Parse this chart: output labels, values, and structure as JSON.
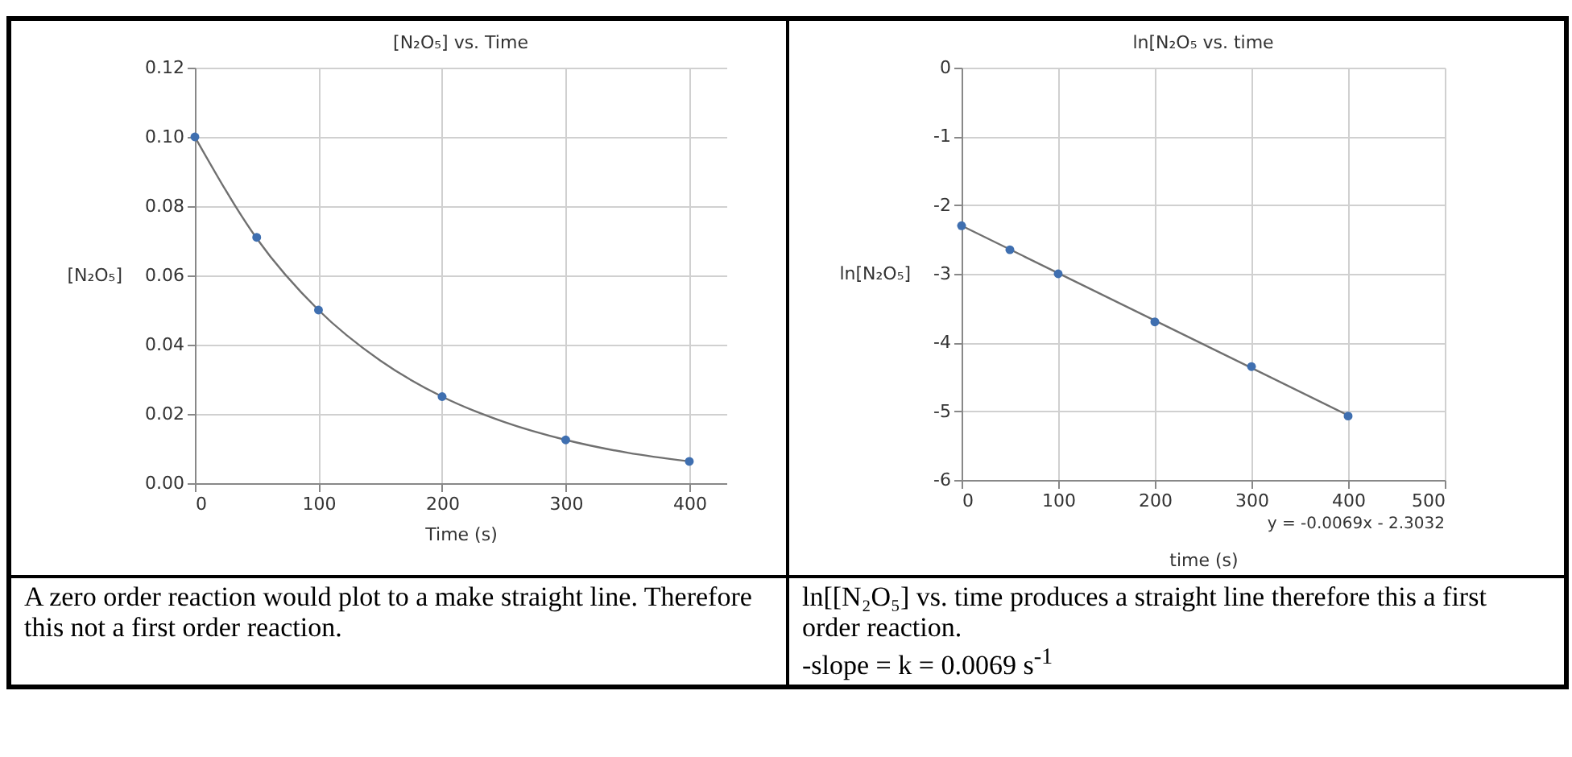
{
  "chart_data": [
    {
      "type": "scatter",
      "title": "[N₂O₅] vs. Time",
      "xlabel": "Time  (s)",
      "ylabel": "[N₂O₅]",
      "xlim": [
        0,
        430
      ],
      "xticks": [
        0,
        100,
        200,
        300,
        400
      ],
      "ylim": [
        0,
        0.12
      ],
      "yticks": [
        {
          "value": 0,
          "label": "0.00"
        },
        {
          "value": 0.02,
          "label": "0.02"
        },
        {
          "value": 0.04,
          "label": "0.04"
        },
        {
          "value": 0.06,
          "label": "0.06"
        },
        {
          "value": 0.08,
          "label": "0.08"
        },
        {
          "value": 0.1,
          "label": "0.10"
        },
        {
          "value": 0.12,
          "label": "0.12"
        }
      ],
      "grid": true,
      "series": [
        {
          "type": "line",
          "marker": "none",
          "color": "#707070",
          "x": [
            0,
            50,
            100,
            150,
            200,
            250,
            300,
            350,
            400
          ],
          "values": [
            0.1,
            0.0707,
            0.05,
            0.0354,
            0.025,
            0.0177,
            0.0125,
            0.0088,
            0.0063
          ]
        },
        {
          "marker": "circle",
          "color": "#3f6fb0",
          "x": [
            0,
            50,
            100,
            200,
            300,
            400
          ],
          "values": [
            0.1,
            0.071,
            0.05,
            0.025,
            0.0125,
            0.0063
          ]
        }
      ],
      "annotations": [
        "A zero order reaction would plot to a make straight line.  Therefore this not a first order reaction."
      ]
    },
    {
      "type": "scatter",
      "title": "ln[N₂O₅ vs. time",
      "xlabel": "time (s)",
      "ylabel": "ln[N₂O₅]",
      "xlim": [
        0,
        500
      ],
      "xticks": [
        0,
        100,
        200,
        300,
        400,
        500
      ],
      "ylim": [
        -6,
        0
      ],
      "yticks": [
        -6,
        -5,
        -4,
        -3,
        -2,
        -1,
        0
      ],
      "grid": true,
      "series": [
        {
          "type": "line",
          "marker": "none",
          "color": "#707070",
          "x": [
            0,
            400
          ],
          "values": [
            -2.3,
            -5.06
          ]
        },
        {
          "marker": "circle",
          "color": "#3f6fb0",
          "x": [
            0,
            50,
            100,
            200,
            300,
            400
          ],
          "values": [
            -2.3,
            -2.65,
            -3.0,
            -3.7,
            -4.35,
            -5.07
          ]
        }
      ],
      "annotations": [
        "y = -0.0069x - 2.3032",
        "ln[[N₂O₅] vs. time produces a straight line therefore this a first order reaction.",
        "-slope = k  = 0.0069 s$^{-1}$"
      ]
    }
  ]
}
